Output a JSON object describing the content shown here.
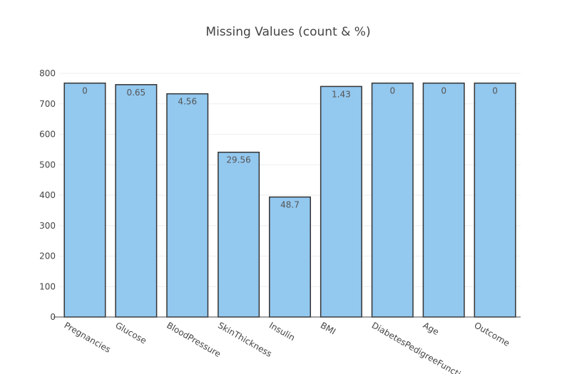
{
  "chart_data": {
    "type": "bar",
    "title": "Missing Values (count & %)",
    "categories": [
      "Pregnancies",
      "Glucose",
      "BloodPressure",
      "SkinThickness",
      "Insulin",
      "BMI",
      "DiabetesPedigreeFunction",
      "Age",
      "Outcome"
    ],
    "values": [
      768,
      763,
      733,
      541,
      394,
      757,
      768,
      768,
      768
    ],
    "text_labels": [
      "0",
      "0.65",
      "4.56",
      "29.56",
      "48.7",
      "1.43",
      "0",
      "0",
      "0"
    ],
    "ylim": [
      0,
      800
    ],
    "yticks": [
      0,
      100,
      200,
      300,
      400,
      500,
      600,
      700,
      800
    ],
    "xlabel": "",
    "ylabel": "",
    "grid": true,
    "colors": {
      "bar_fill": "#93c8ef",
      "bar_stroke": "#333333",
      "text": "#444444"
    }
  }
}
